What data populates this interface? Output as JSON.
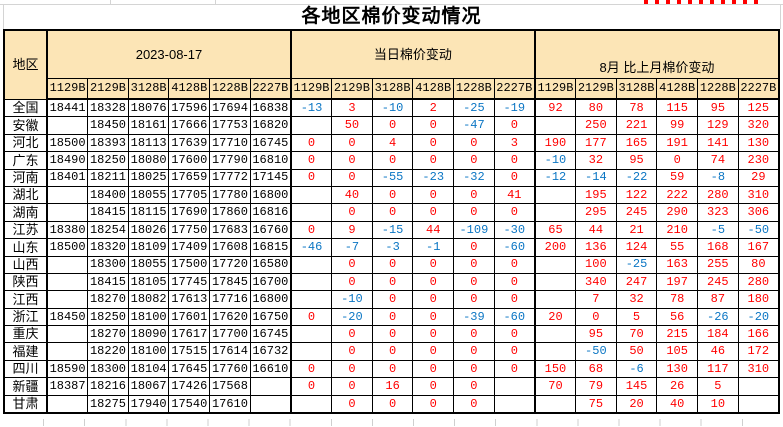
{
  "title": "各地区棉价变动情况",
  "colors": {
    "positive": "#ff0000",
    "negative": "#0b76c4",
    "header_bg": "#fce5b6",
    "border": "#000000"
  },
  "header": {
    "region_label": "地区",
    "groups": [
      "2023-08-17",
      "当日棉价变动",
      "8月 比上月棉价变动"
    ],
    "codes": [
      "1129B",
      "2129B",
      "3128B",
      "4128B",
      "1228B",
      "2227B"
    ]
  },
  "rows": [
    {
      "region": "全国",
      "price": [
        "18441",
        "18328",
        "18076",
        "17596",
        "17694",
        "16838"
      ],
      "daily": [
        "-13",
        "3",
        "-10",
        "2",
        "-25",
        "-19"
      ],
      "monthly": [
        "92",
        "80",
        "78",
        "115",
        "95",
        "125"
      ]
    },
    {
      "region": "安徽",
      "price": [
        "",
        "18450",
        "18161",
        "17666",
        "17753",
        "16820"
      ],
      "daily": [
        "",
        "50",
        "0",
        "0",
        "-47",
        "0"
      ],
      "monthly": [
        "",
        "250",
        "221",
        "99",
        "129",
        "320"
      ]
    },
    {
      "region": "河北",
      "price": [
        "18500",
        "18393",
        "18113",
        "17639",
        "17710",
        "16745"
      ],
      "daily": [
        "0",
        "0",
        "4",
        "0",
        "0",
        "3"
      ],
      "monthly": [
        "190",
        "177",
        "165",
        "191",
        "141",
        "130"
      ]
    },
    {
      "region": "广东",
      "price": [
        "18490",
        "18250",
        "18080",
        "17600",
        "17790",
        "16810"
      ],
      "daily": [
        "0",
        "0",
        "0",
        "0",
        "0",
        "0"
      ],
      "monthly": [
        "-10",
        "32",
        "95",
        "0",
        "74",
        "230"
      ]
    },
    {
      "region": "河南",
      "price": [
        "18401",
        "18211",
        "18025",
        "17659",
        "17772",
        "17145"
      ],
      "daily": [
        "0",
        "0",
        "-55",
        "-23",
        "-32",
        "0"
      ],
      "monthly": [
        "-12",
        "-14",
        "-22",
        "59",
        "-8",
        "29"
      ]
    },
    {
      "region": "湖北",
      "price": [
        "",
        "18400",
        "18055",
        "17705",
        "17780",
        "16800"
      ],
      "daily": [
        "",
        "40",
        "0",
        "0",
        "0",
        "41"
      ],
      "monthly": [
        "",
        "195",
        "122",
        "222",
        "280",
        "310"
      ]
    },
    {
      "region": "湖南",
      "price": [
        "",
        "18415",
        "18115",
        "17690",
        "17860",
        "16816"
      ],
      "daily": [
        "",
        "0",
        "0",
        "0",
        "0",
        "0"
      ],
      "monthly": [
        "",
        "295",
        "245",
        "290",
        "323",
        "306"
      ]
    },
    {
      "region": "江苏",
      "price": [
        "18380",
        "18254",
        "18026",
        "17750",
        "17683",
        "16760"
      ],
      "daily": [
        "0",
        "9",
        "-15",
        "44",
        "-109",
        "-30"
      ],
      "monthly": [
        "65",
        "44",
        "21",
        "210",
        "-5",
        "-50"
      ]
    },
    {
      "region": "山东",
      "price": [
        "18500",
        "18320",
        "18109",
        "17409",
        "17608",
        "16815"
      ],
      "daily": [
        "-46",
        "-7",
        "-3",
        "-1",
        "0",
        "-60"
      ],
      "monthly": [
        "200",
        "136",
        "124",
        "55",
        "168",
        "167"
      ]
    },
    {
      "region": "山西",
      "price": [
        "",
        "18300",
        "18055",
        "17500",
        "17720",
        "16580"
      ],
      "daily": [
        "",
        "0",
        "0",
        "0",
        "0",
        "0"
      ],
      "monthly": [
        "",
        "100",
        "-25",
        "163",
        "255",
        "80"
      ]
    },
    {
      "region": "陕西",
      "price": [
        "",
        "18415",
        "18105",
        "17745",
        "17845",
        "16700"
      ],
      "daily": [
        "",
        "0",
        "0",
        "0",
        "0",
        "0"
      ],
      "monthly": [
        "",
        "340",
        "247",
        "197",
        "245",
        "280"
      ]
    },
    {
      "region": "江西",
      "price": [
        "",
        "18270",
        "18082",
        "17613",
        "17716",
        "16800"
      ],
      "daily": [
        "",
        "-10",
        "0",
        "0",
        "0",
        "0"
      ],
      "monthly": [
        "",
        "7",
        "32",
        "78",
        "87",
        "180"
      ]
    },
    {
      "region": "浙江",
      "price": [
        "18450",
        "18250",
        "18100",
        "17601",
        "17620",
        "16750"
      ],
      "daily": [
        "0",
        "-20",
        "0",
        "0",
        "-39",
        "-60"
      ],
      "monthly": [
        "20",
        "0",
        "5",
        "56",
        "-26",
        "-20"
      ]
    },
    {
      "region": "重庆",
      "price": [
        "",
        "18270",
        "18090",
        "17617",
        "17700",
        "16745"
      ],
      "daily": [
        "",
        "0",
        "0",
        "0",
        "0",
        "0"
      ],
      "monthly": [
        "",
        "95",
        "70",
        "215",
        "184",
        "166"
      ]
    },
    {
      "region": "福建",
      "price": [
        "",
        "18220",
        "18100",
        "17515",
        "17614",
        "16732"
      ],
      "daily": [
        "",
        "0",
        "0",
        "0",
        "0",
        "0"
      ],
      "monthly": [
        "",
        "-50",
        "50",
        "105",
        "46",
        "172"
      ]
    },
    {
      "region": "四川",
      "price": [
        "18590",
        "18300",
        "18104",
        "17645",
        "17760",
        "16610"
      ],
      "daily": [
        "0",
        "0",
        "0",
        "0",
        "0",
        "0"
      ],
      "monthly": [
        "150",
        "68",
        "-6",
        "130",
        "117",
        "310"
      ]
    },
    {
      "region": "新疆",
      "price": [
        "18387",
        "18216",
        "18067",
        "17426",
        "17568",
        ""
      ],
      "daily": [
        "0",
        "0",
        "16",
        "0",
        "0",
        ""
      ],
      "monthly": [
        "70",
        "79",
        "145",
        "26",
        "5",
        ""
      ]
    },
    {
      "region": "甘肃",
      "price": [
        "",
        "18275",
        "17940",
        "17540",
        "17610",
        ""
      ],
      "daily": [
        "",
        "0",
        "0",
        "0",
        "0",
        ""
      ],
      "monthly": [
        "",
        "75",
        "20",
        "40",
        "10",
        ""
      ]
    }
  ]
}
